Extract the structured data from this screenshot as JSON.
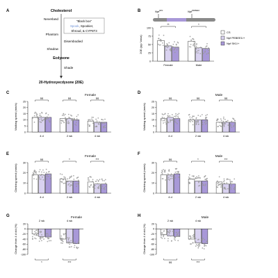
{
  "panels": {
    "A": {
      "letter": "A",
      "nodes": {
        "cholesterol": "Cholesterol",
        "neverland": "Neverland",
        "phantom": "Phantom",
        "shadow": "Shadow",
        "ecdysone": "Ecdysone",
        "shade": "Shade",
        "product": "20-Hydroxyecdysone (20E)",
        "disembodied": "Disembodied",
        "blackbox_line1": "\"Black box\"",
        "blackbox_spook": "Spook",
        "blackbox_line2": ", Spookier,",
        "blackbox_line3": "Shroud, & CYP6T3"
      }
    },
    "B": {
      "letter": "B",
      "gene_left": "Npf",
      "gene_left_sup": "SK1",
      "gene_right": "Npf",
      "gene_right_sup": "PEBEE1"
    },
    "C": {
      "letter": "C"
    },
    "D": {
      "letter": "D"
    },
    "E": {
      "letter": "E"
    },
    "F": {
      "letter": "F"
    },
    "G": {
      "letter": "G"
    },
    "H": {
      "letter": "H"
    }
  },
  "legend": {
    "entries": [
      {
        "label": "CS",
        "color": "#ffffff"
      },
      {
        "label": "Npf PEBEE1/+",
        "color": "#d9d2f0"
      },
      {
        "label": "Npf SK1/+",
        "color": "#a898d8"
      }
    ]
  },
  "colors": {
    "cs": "#ffffff",
    "light": "#d9d2f0",
    "dark": "#a898d8",
    "points": "#9a9a9a",
    "axis": "#333333",
    "spook": "#6b8fd6"
  },
  "chart_data": [
    {
      "id": "B",
      "type": "bar",
      "ylabel": "20E (pg / larva)",
      "ylim": [
        0,
        100
      ],
      "yticks": [
        0,
        25,
        50,
        75,
        100
      ],
      "categories": [
        "Female",
        "Male"
      ],
      "series": [
        {
          "name": "CS",
          "values": [
            62,
            60
          ]
        },
        {
          "name": "Npf PEBEE1/+",
          "values": [
            46,
            40
          ]
        },
        {
          "name": "Npf SK1/+",
          "values": [
            42,
            38
          ]
        }
      ],
      "annotations": [
        "**",
        "*"
      ],
      "legend": "right"
    },
    {
      "id": "C",
      "type": "bar",
      "title": "Female",
      "ylabel": "Walking speed (mm/s)",
      "ylim": [
        0,
        25
      ],
      "yticks": [
        0,
        5,
        10,
        15,
        20,
        25
      ],
      "categories": [
        "4 d",
        "2 wk",
        "4 wk"
      ],
      "series": [
        {
          "name": "CS",
          "values": [
            12,
            11,
            9
          ]
        },
        {
          "name": "Npf PEBEE1/+",
          "values": [
            12,
            11,
            8
          ]
        },
        {
          "name": "Npf SK1/+",
          "values": [
            12,
            10,
            8
          ]
        }
      ],
      "annotations": [
        "ns",
        "ns",
        "ns"
      ]
    },
    {
      "id": "D",
      "type": "bar",
      "title": "Male",
      "ylabel": "Walking speed (mm/s)",
      "ylim": [
        0,
        25
      ],
      "yticks": [
        0,
        5,
        10,
        15,
        20,
        25
      ],
      "categories": [
        "4 d",
        "2 wk",
        "4 wk"
      ],
      "series": [
        {
          "name": "CS",
          "values": [
            11,
            10,
            8
          ]
        },
        {
          "name": "Npf PEBEE1/+",
          "values": [
            12,
            10,
            8
          ]
        },
        {
          "name": "Npf SK1/+",
          "values": [
            11,
            10,
            8
          ]
        }
      ],
      "annotations": [
        "ns",
        "ns",
        "ns"
      ]
    },
    {
      "id": "E",
      "type": "bar",
      "title": "Female",
      "ylabel": "Climbing speed (mm/s)",
      "ylim": [
        0,
        30
      ],
      "yticks": [
        0,
        10,
        20,
        30
      ],
      "categories": [
        "4 d",
        "2 wk",
        "4 wk"
      ],
      "series": [
        {
          "name": "CS",
          "values": [
            18,
            14,
            11
          ]
        },
        {
          "name": "Npf PEBEE1/+",
          "values": [
            18,
            12,
            9
          ]
        },
        {
          "name": "Npf SK1/+",
          "values": [
            19,
            12,
            9
          ]
        }
      ],
      "annotations": [
        "ns",
        "*",
        "***"
      ]
    },
    {
      "id": "F",
      "type": "bar",
      "title": "Male",
      "ylabel": "Climbing speed (mm/s)",
      "ylim": [
        0,
        30
      ],
      "yticks": [
        0,
        10,
        20,
        30
      ],
      "categories": [
        "4 d",
        "2 wk",
        "4 wk"
      ],
      "series": [
        {
          "name": "CS",
          "values": [
            18,
            14,
            11
          ]
        },
        {
          "name": "Npf PEBEE1/+",
          "values": [
            18,
            12,
            9
          ]
        },
        {
          "name": "Npf SK1/+",
          "values": [
            19,
            12,
            9
          ]
        }
      ],
      "annotations": [
        "ns",
        "*",
        "***"
      ]
    },
    {
      "id": "G",
      "type": "bar",
      "title": "Female",
      "ylabel": "Change from 4 d old (%)",
      "ylim": [
        -100,
        20
      ],
      "yticks": [
        -100,
        -80,
        -60,
        -40,
        -20,
        0,
        20
      ],
      "categories": [
        "2 wk",
        "4 wk"
      ],
      "series": [
        {
          "name": "CS",
          "values": [
            -20,
            -40
          ]
        },
        {
          "name": "Npf PEBEE1/+",
          "values": [
            -30,
            -55
          ]
        },
        {
          "name": "Npf SK1/+",
          "values": [
            -32,
            -58
          ]
        }
      ],
      "annotations": [
        "*",
        "***"
      ]
    },
    {
      "id": "H",
      "type": "bar",
      "title": "Male",
      "ylabel": "Change from 4 d old (%)",
      "ylim": [
        -100,
        20
      ],
      "yticks": [
        -100,
        -80,
        -60,
        -40,
        -20,
        0,
        20
      ],
      "categories": [
        "2 wk",
        "4 wk"
      ],
      "series": [
        {
          "name": "CS",
          "values": [
            -22,
            -40
          ]
        },
        {
          "name": "Npf PEBEE1/+",
          "values": [
            -28,
            -55
          ]
        },
        {
          "name": "Npf SK1/+",
          "values": [
            -30,
            -58
          ]
        }
      ],
      "annotations": [
        "ns",
        "***"
      ]
    }
  ]
}
